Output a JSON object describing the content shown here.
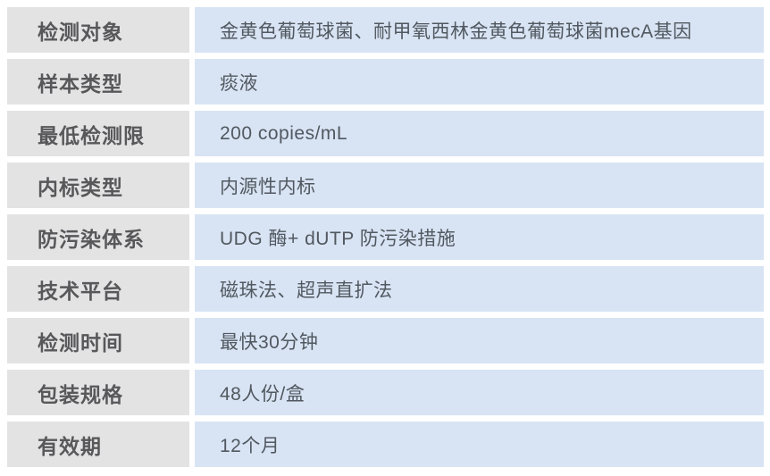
{
  "table": {
    "rows": [
      {
        "label": "检测对象",
        "value": "金黄色葡萄球菌、耐甲氧西林金黄色葡萄球菌mecA基因"
      },
      {
        "label": "样本类型",
        "value": "痰液"
      },
      {
        "label": "最低检测限",
        "value": "200 copies/mL"
      },
      {
        "label": "内标类型",
        "value": "内源性内标"
      },
      {
        "label": "防污染体系",
        "value": "UDG 酶+ dUTP 防污染措施"
      },
      {
        "label": "技术平台",
        "value": "磁珠法、超声直扩法"
      },
      {
        "label": "检测时间",
        "value": "最快30分钟"
      },
      {
        "label": "包装规格",
        "value": "48人份/盒"
      },
      {
        "label": "有效期",
        "value": "12个月"
      }
    ],
    "colors": {
      "page_bg": "#ffffff",
      "label_bg": "#e3e3e4",
      "value_bg": "#d8e4f4",
      "label_text": "#58585a",
      "value_text": "#515860",
      "gap": "#ffffff"
    }
  }
}
